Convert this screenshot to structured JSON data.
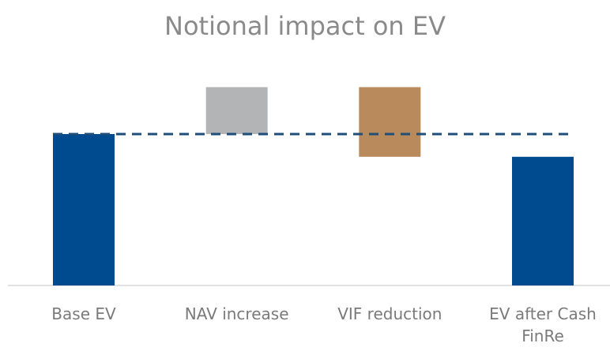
{
  "chart_data": {
    "type": "waterfall",
    "title": "Notional impact on EV",
    "categories": [
      "Base EV",
      "NAV increase",
      "VIF reduction",
      "EV after Cash FinRe"
    ],
    "values": [
      100,
      31,
      -46,
      85
    ],
    "measure": [
      "absolute",
      "relative",
      "relative",
      "total"
    ],
    "colors": [
      "#004a8f",
      "#b3b4b6",
      "#b98a5c",
      "#004a8f"
    ],
    "reference_line": {
      "color": "#1f4e79",
      "dashed": true
    },
    "ylim": [
      0,
      140
    ]
  }
}
